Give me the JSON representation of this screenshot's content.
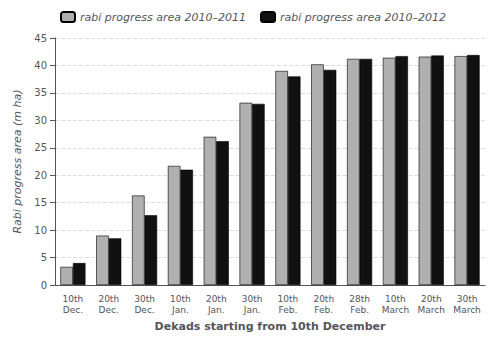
{
  "chart_data": {
    "type": "bar",
    "categories": [
      "10th\nDec.",
      "20th\nDec.",
      "30th\nDec.",
      "10th\nJan.",
      "20th\nJan.",
      "30th\nJan.",
      "10th\nFeb.",
      "20th\nFeb.",
      "28th\nFeb.",
      "10th\nMarch",
      "20th\nMarch",
      "30th\nMarch"
    ],
    "series": [
      {
        "name": "rabi progress area 2010–2011",
        "color": "#b0b0b0",
        "values": [
          3.3,
          9.0,
          16.3,
          21.7,
          27.0,
          33.2,
          39.0,
          40.2,
          41.2,
          41.4,
          41.6,
          41.7
        ]
      },
      {
        "name": "rabi progress area 2010–2012",
        "color": "#111111",
        "values": [
          4.0,
          8.5,
          12.7,
          21.0,
          26.2,
          33.0,
          38.0,
          39.2,
          41.2,
          41.7,
          41.8,
          41.9
        ]
      }
    ],
    "xlabel": "Dekads starting from 10th December",
    "ylabel": "Rabi progress area (m ha)",
    "ylim": [
      0,
      45
    ],
    "yticks": [
      0,
      5,
      10,
      15,
      20,
      25,
      30,
      35,
      40,
      45
    ],
    "grid": true,
    "legend": "upper left"
  }
}
